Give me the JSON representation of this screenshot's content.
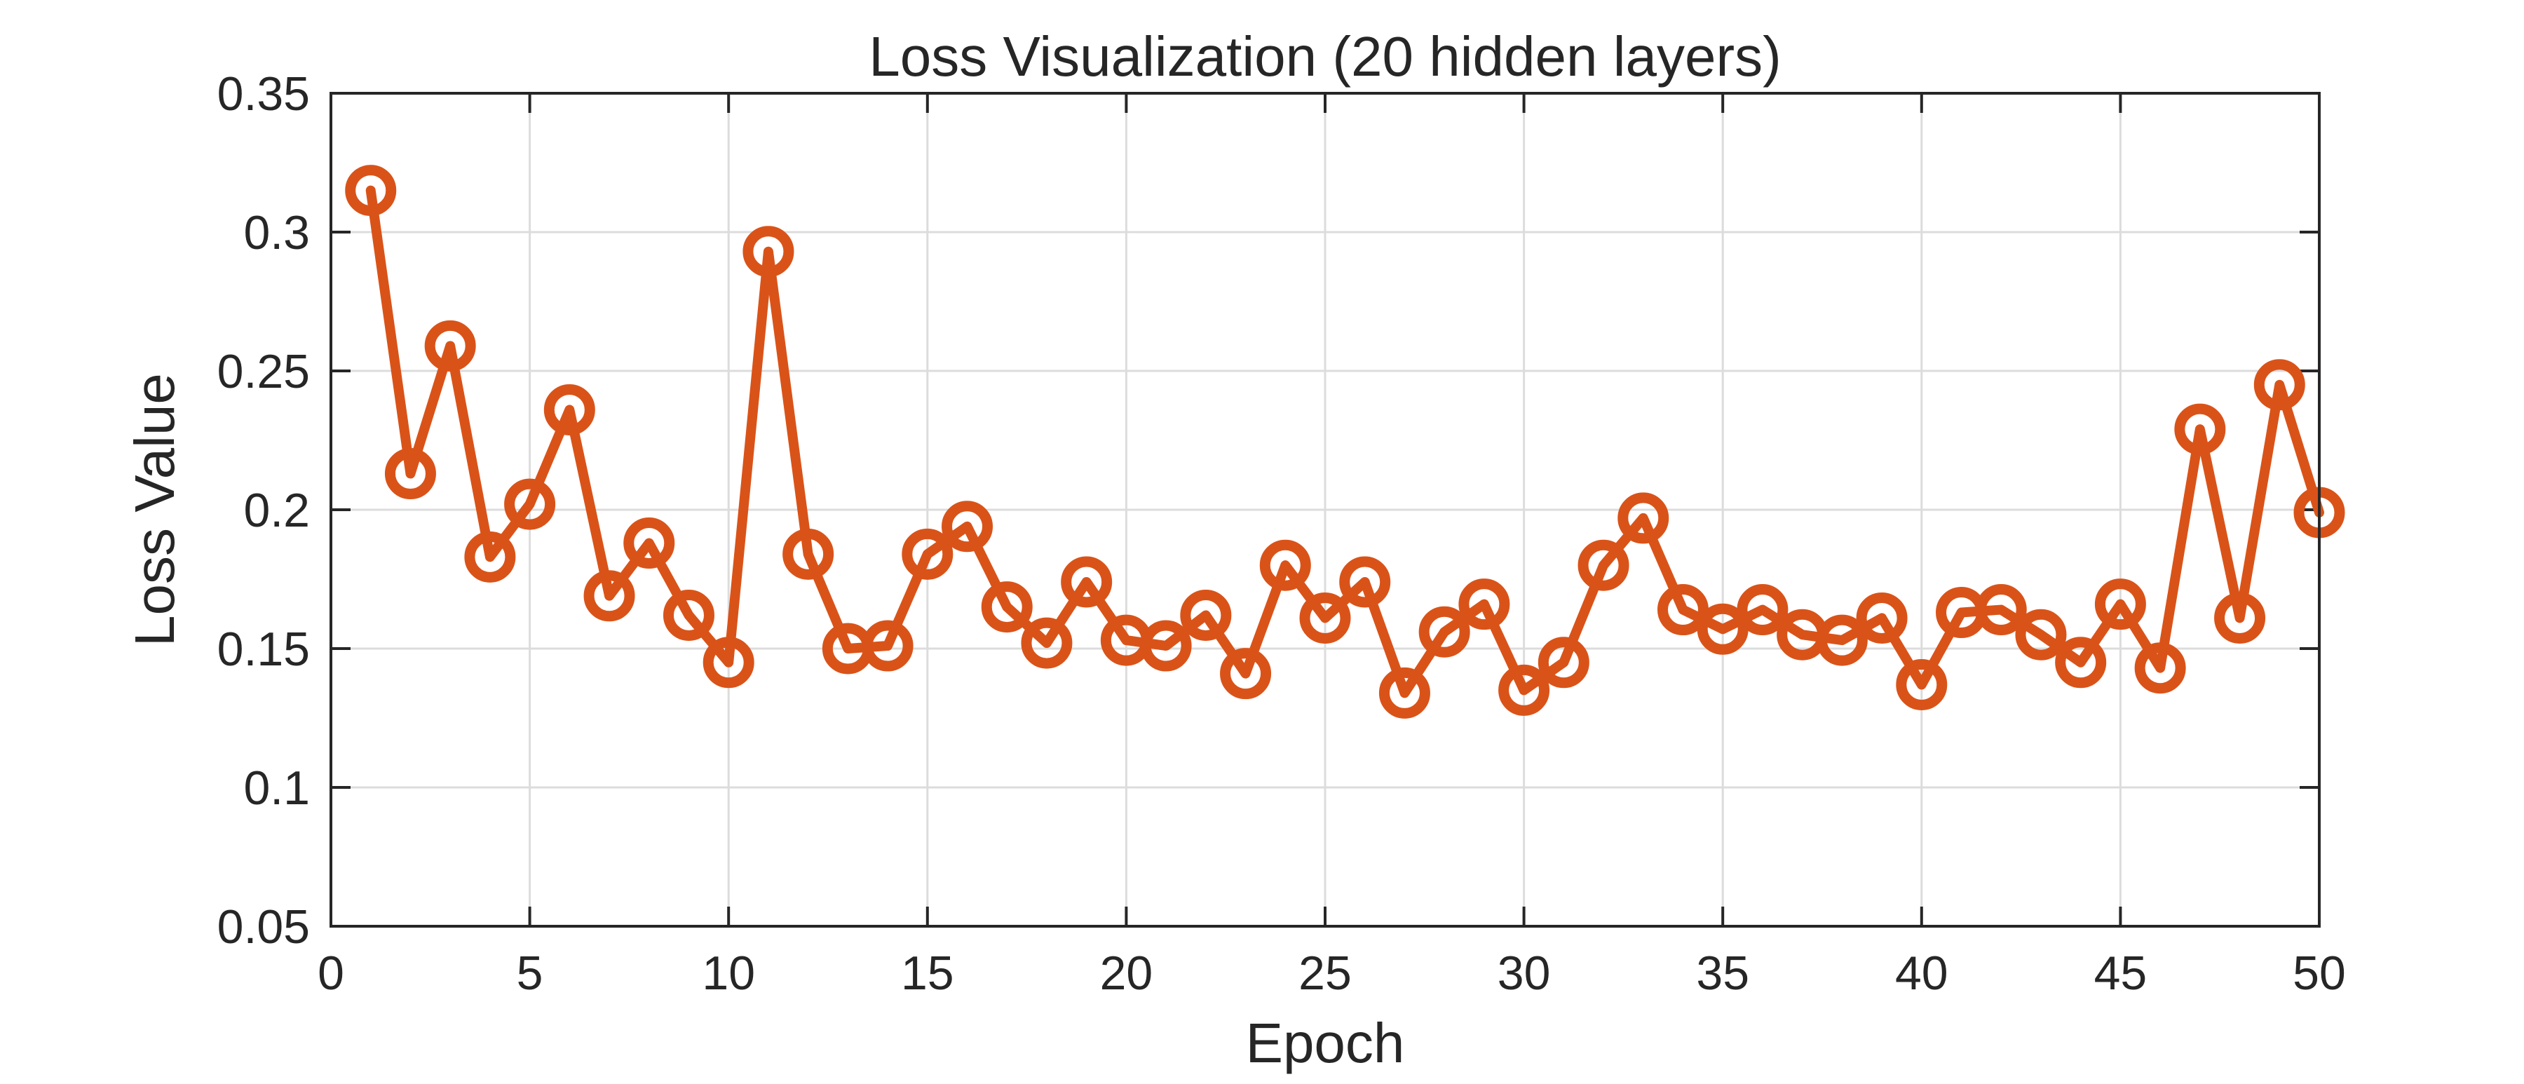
{
  "chart_data": {
    "type": "line",
    "title": "Loss Visualization (20 hidden layers)",
    "xlabel": "Epoch",
    "ylabel": "Loss Value",
    "xlim": [
      0,
      50
    ],
    "ylim": [
      0.05,
      0.35
    ],
    "xticks": [
      0,
      5,
      10,
      15,
      20,
      25,
      30,
      35,
      40,
      45,
      50
    ],
    "xtick_labels": [
      "0",
      "5",
      "10",
      "15",
      "20",
      "25",
      "30",
      "35",
      "40",
      "45",
      "50"
    ],
    "yticks": [
      0.05,
      0.1,
      0.15,
      0.2,
      0.25,
      0.3,
      0.35
    ],
    "ytick_labels": [
      "0.05",
      "0.1",
      "0.15",
      "0.2",
      "0.25",
      "0.3",
      "0.35"
    ],
    "grid": true,
    "marker": "circle",
    "color": "#D95319",
    "series": [
      {
        "x": [
          1,
          2,
          3,
          4,
          5,
          6,
          7,
          8,
          9,
          10,
          11,
          12,
          13,
          14,
          15,
          16,
          17,
          18,
          19,
          20,
          21,
          22,
          23,
          24,
          25,
          26,
          27,
          28,
          29,
          30,
          31,
          32,
          33,
          34,
          35,
          36,
          37,
          38,
          39,
          40,
          41,
          42,
          43,
          44,
          45,
          46,
          47,
          48,
          49,
          50
        ],
        "values": [
          0.315,
          0.213,
          0.259,
          0.183,
          0.202,
          0.236,
          0.169,
          0.188,
          0.162,
          0.145,
          0.293,
          0.184,
          0.15,
          0.151,
          0.184,
          0.194,
          0.165,
          0.152,
          0.174,
          0.153,
          0.151,
          0.162,
          0.141,
          0.18,
          0.161,
          0.174,
          0.134,
          0.156,
          0.166,
          0.135,
          0.145,
          0.18,
          0.197,
          0.164,
          0.157,
          0.164,
          0.155,
          0.153,
          0.161,
          0.137,
          0.163,
          0.164,
          0.155,
          0.145,
          0.166,
          0.143,
          0.229,
          0.161,
          0.245,
          0.199
        ]
      }
    ]
  }
}
